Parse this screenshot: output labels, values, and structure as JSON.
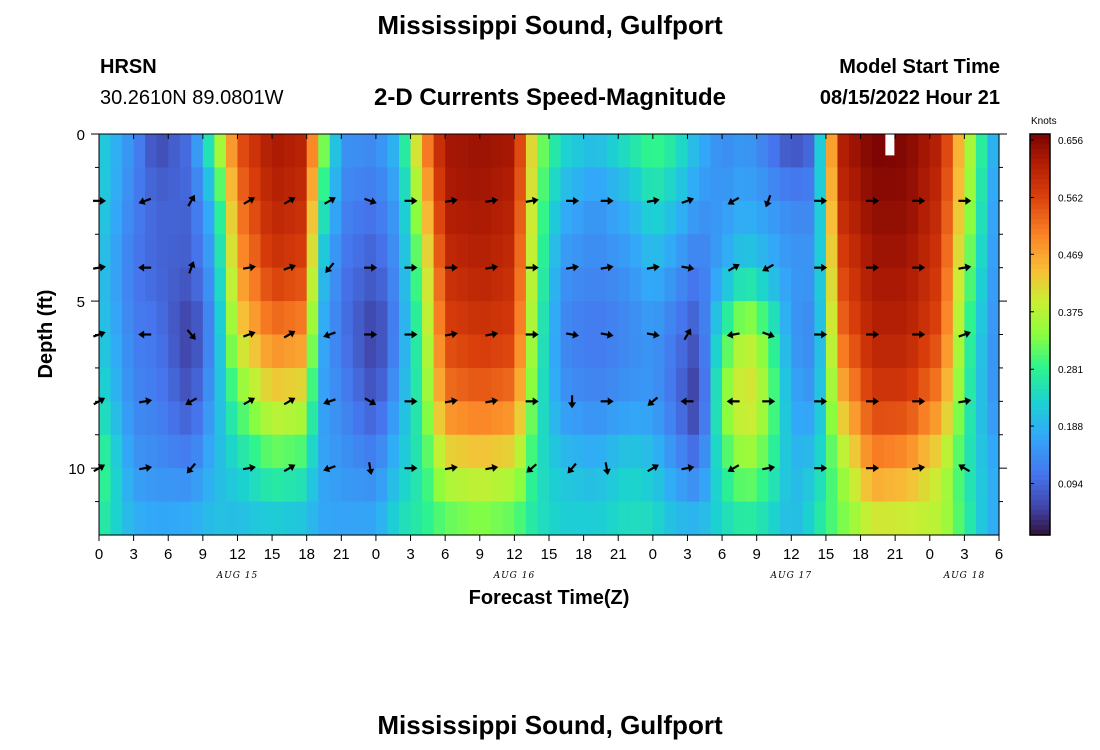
{
  "header": {
    "title": "Mississippi Sound, Gulfport",
    "station": "HRSN",
    "coords": "30.2610N  89.0801W",
    "model_label": "Model Start Time",
    "model_time": "08/15/2022 Hour 21",
    "footer_title": "Mississippi Sound, Gulfport"
  },
  "chart_data": {
    "type": "heatmap",
    "title": "2-D Currents Speed-Magnitude",
    "xlabel": "Forecast Time(Z)",
    "ylabel": "Depth (ft)",
    "xlim": [
      0,
      78
    ],
    "ylim": [
      0,
      12
    ],
    "x_ticks": [
      {
        "v": 0,
        "l": "0"
      },
      {
        "v": 3,
        "l": "3"
      },
      {
        "v": 6,
        "l": "6"
      },
      {
        "v": 9,
        "l": "9"
      },
      {
        "v": 12,
        "l": "12"
      },
      {
        "v": 15,
        "l": "15"
      },
      {
        "v": 18,
        "l": "18"
      },
      {
        "v": 21,
        "l": "21"
      },
      {
        "v": 24,
        "l": "0"
      },
      {
        "v": 27,
        "l": "3"
      },
      {
        "v": 30,
        "l": "6"
      },
      {
        "v": 33,
        "l": "9"
      },
      {
        "v": 36,
        "l": "12"
      },
      {
        "v": 39,
        "l": "15"
      },
      {
        "v": 42,
        "l": "18"
      },
      {
        "v": 45,
        "l": "21"
      },
      {
        "v": 48,
        "l": "0"
      },
      {
        "v": 51,
        "l": "3"
      },
      {
        "v": 54,
        "l": "6"
      },
      {
        "v": 57,
        "l": "9"
      },
      {
        "v": 60,
        "l": "12"
      },
      {
        "v": 63,
        "l": "15"
      },
      {
        "v": 66,
        "l": "18"
      },
      {
        "v": 69,
        "l": "21"
      },
      {
        "v": 72,
        "l": "0"
      },
      {
        "v": 75,
        "l": "3"
      },
      {
        "v": 78,
        "l": "6"
      }
    ],
    "y_ticks": [
      {
        "v": 0,
        "l": "0"
      },
      {
        "v": 5,
        "l": "5"
      },
      {
        "v": 10,
        "l": "10"
      }
    ],
    "day_labels": [
      {
        "v": 12,
        "l": "AUG 15"
      },
      {
        "v": 36,
        "l": "AUG 16"
      },
      {
        "v": 60,
        "l": "AUG 17"
      },
      {
        "v": 75,
        "l": "AUG 18"
      }
    ],
    "colorbar": {
      "unit": "Knots",
      "min": 0.0,
      "max": 0.656,
      "ticks": [
        0.656,
        0.562,
        0.469,
        0.375,
        0.281,
        0.188,
        0.094
      ]
    },
    "depth_levels": [
      0,
      2,
      4,
      6,
      8,
      10,
      12
    ],
    "speed_profiles": [
      {
        "hour": 0,
        "speeds": [
          0.22,
          0.22,
          0.2,
          0.21,
          0.24,
          0.3,
          0.26
        ]
      },
      {
        "hour": 3,
        "speeds": [
          0.13,
          0.11,
          0.1,
          0.11,
          0.12,
          0.14,
          0.18
        ]
      },
      {
        "hour": 5,
        "speeds": [
          0.04,
          0.08,
          0.08,
          0.1,
          0.11,
          0.13,
          0.17
        ]
      },
      {
        "hour": 8,
        "speeds": [
          0.1,
          0.08,
          0.07,
          0.03,
          0.06,
          0.12,
          0.18
        ]
      },
      {
        "hour": 10,
        "speeds": [
          0.32,
          0.2,
          0.16,
          0.14,
          0.16,
          0.18,
          0.2
        ]
      },
      {
        "hour": 12,
        "speeds": [
          0.54,
          0.5,
          0.46,
          0.4,
          0.3,
          0.22,
          0.18
        ]
      },
      {
        "hour": 15,
        "speeds": [
          0.62,
          0.6,
          0.57,
          0.5,
          0.4,
          0.28,
          0.19
        ]
      },
      {
        "hour": 18,
        "speeds": [
          0.6,
          0.58,
          0.55,
          0.48,
          0.38,
          0.26,
          0.18
        ]
      },
      {
        "hour": 19,
        "speeds": [
          0.4,
          0.3,
          0.22,
          0.18,
          0.16,
          0.16,
          0.16
        ]
      },
      {
        "hour": 21,
        "speeds": [
          0.14,
          0.12,
          0.1,
          0.1,
          0.12,
          0.14,
          0.16
        ]
      },
      {
        "hour": 24,
        "speeds": [
          0.13,
          0.1,
          0.07,
          0.03,
          0.06,
          0.12,
          0.17
        ]
      },
      {
        "hour": 26,
        "speeds": [
          0.2,
          0.16,
          0.14,
          0.13,
          0.16,
          0.2,
          0.24
        ]
      },
      {
        "hour": 28,
        "speeds": [
          0.48,
          0.4,
          0.34,
          0.3,
          0.28,
          0.26,
          0.26
        ]
      },
      {
        "hour": 30,
        "speeds": [
          0.62,
          0.61,
          0.58,
          0.55,
          0.5,
          0.38,
          0.28
        ]
      },
      {
        "hour": 33,
        "speeds": [
          0.63,
          0.62,
          0.6,
          0.57,
          0.52,
          0.4,
          0.3
        ]
      },
      {
        "hour": 36,
        "speeds": [
          0.62,
          0.6,
          0.58,
          0.56,
          0.5,
          0.38,
          0.28
        ]
      },
      {
        "hour": 38,
        "speeds": [
          0.34,
          0.32,
          0.3,
          0.28,
          0.26,
          0.24,
          0.24
        ]
      },
      {
        "hour": 40,
        "speeds": [
          0.24,
          0.18,
          0.14,
          0.12,
          0.14,
          0.2,
          0.22
        ]
      },
      {
        "hour": 43,
        "speeds": [
          0.2,
          0.14,
          0.12,
          0.1,
          0.12,
          0.18,
          0.22
        ]
      },
      {
        "hour": 46,
        "speeds": [
          0.26,
          0.18,
          0.14,
          0.12,
          0.14,
          0.22,
          0.24
        ]
      },
      {
        "hour": 48,
        "speeds": [
          0.3,
          0.24,
          0.18,
          0.14,
          0.14,
          0.2,
          0.24
        ]
      },
      {
        "hour": 50,
        "speeds": [
          0.26,
          0.2,
          0.14,
          0.1,
          0.09,
          0.14,
          0.2
        ]
      },
      {
        "hour": 52,
        "speeds": [
          0.18,
          0.14,
          0.1,
          0.06,
          0.02,
          0.1,
          0.2
        ]
      },
      {
        "hour": 54,
        "speeds": [
          0.12,
          0.14,
          0.16,
          0.26,
          0.32,
          0.26,
          0.22
        ]
      },
      {
        "hour": 56,
        "speeds": [
          0.14,
          0.16,
          0.22,
          0.38,
          0.42,
          0.34,
          0.24
        ]
      },
      {
        "hour": 58,
        "speeds": [
          0.1,
          0.14,
          0.18,
          0.3,
          0.34,
          0.28,
          0.22
        ]
      },
      {
        "hour": 60,
        "speeds": [
          0.04,
          0.12,
          0.14,
          0.14,
          0.16,
          0.18,
          0.18
        ]
      },
      {
        "hour": 62,
        "speeds": [
          0.08,
          0.12,
          0.14,
          0.12,
          0.14,
          0.2,
          0.24
        ]
      },
      {
        "hour": 63,
        "speeds": [
          0.34,
          0.3,
          0.28,
          0.26,
          0.26,
          0.26,
          0.28
        ]
      },
      {
        "hour": 64,
        "speeds": [
          0.6,
          0.58,
          0.54,
          0.5,
          0.42,
          0.32,
          0.3
        ]
      },
      {
        "hour": 67,
        "speeds": [
          0.66,
          0.64,
          0.62,
          0.6,
          0.56,
          0.48,
          0.36
        ]
      },
      {
        "hour": 70,
        "speeds": [
          0.65,
          0.64,
          0.62,
          0.6,
          0.56,
          0.46,
          0.36
        ]
      },
      {
        "hour": 73,
        "speeds": [
          0.6,
          0.58,
          0.56,
          0.54,
          0.48,
          0.38,
          0.36
        ]
      },
      {
        "hour": 75,
        "speeds": [
          0.4,
          0.38,
          0.34,
          0.3,
          0.28,
          0.26,
          0.28
        ]
      },
      {
        "hour": 77,
        "speeds": [
          0.22,
          0.2,
          0.18,
          0.16,
          0.16,
          0.18,
          0.18
        ]
      },
      {
        "hour": 78,
        "speeds": [
          0.14,
          0.12,
          0.12,
          0.12,
          0.12,
          0.16,
          0.16
        ]
      }
    ],
    "vectors": [
      {
        "t": 0,
        "d": 2,
        "dir": 90
      },
      {
        "t": 4,
        "d": 2,
        "dir": 250
      },
      {
        "t": 8,
        "d": 2,
        "dir": 30
      },
      {
        "t": 13,
        "d": 2,
        "dir": 60
      },
      {
        "t": 16.5,
        "d": 2,
        "dir": 60
      },
      {
        "t": 20,
        "d": 2,
        "dir": 60
      },
      {
        "t": 23.5,
        "d": 2,
        "dir": 110
      },
      {
        "t": 27,
        "d": 2,
        "dir": 90
      },
      {
        "t": 30.5,
        "d": 2,
        "dir": 80
      },
      {
        "t": 34,
        "d": 2,
        "dir": 80
      },
      {
        "t": 37.5,
        "d": 2,
        "dir": 80
      },
      {
        "t": 41,
        "d": 2,
        "dir": 90
      },
      {
        "t": 44,
        "d": 2,
        "dir": 90
      },
      {
        "t": 48,
        "d": 2,
        "dir": 80
      },
      {
        "t": 51,
        "d": 2,
        "dir": 70
      },
      {
        "t": 55,
        "d": 2,
        "dir": 240
      },
      {
        "t": 58,
        "d": 2,
        "dir": 200
      },
      {
        "t": 62.5,
        "d": 2,
        "dir": 90
      },
      {
        "t": 67,
        "d": 2,
        "dir": 90
      },
      {
        "t": 71,
        "d": 2,
        "dir": 90
      },
      {
        "t": 75,
        "d": 2,
        "dir": 90
      },
      {
        "t": 0,
        "d": 4,
        "dir": 80
      },
      {
        "t": 4,
        "d": 4,
        "dir": 270
      },
      {
        "t": 8,
        "d": 4,
        "dir": 20
      },
      {
        "t": 13,
        "d": 4,
        "dir": 80
      },
      {
        "t": 16.5,
        "d": 4,
        "dir": 70
      },
      {
        "t": 20,
        "d": 4,
        "dir": 220
      },
      {
        "t": 23.5,
        "d": 4,
        "dir": 90
      },
      {
        "t": 27,
        "d": 4,
        "dir": 90
      },
      {
        "t": 30.5,
        "d": 4,
        "dir": 90
      },
      {
        "t": 34,
        "d": 4,
        "dir": 80
      },
      {
        "t": 37.5,
        "d": 4,
        "dir": 90
      },
      {
        "t": 41,
        "d": 4,
        "dir": 80
      },
      {
        "t": 44,
        "d": 4,
        "dir": 80
      },
      {
        "t": 48,
        "d": 4,
        "dir": 80
      },
      {
        "t": 51,
        "d": 4,
        "dir": 100
      },
      {
        "t": 55,
        "d": 4,
        "dir": 60
      },
      {
        "t": 58,
        "d": 4,
        "dir": 240
      },
      {
        "t": 62.5,
        "d": 4,
        "dir": 90
      },
      {
        "t": 67,
        "d": 4,
        "dir": 90
      },
      {
        "t": 71,
        "d": 4,
        "dir": 90
      },
      {
        "t": 75,
        "d": 4,
        "dir": 80
      },
      {
        "t": 0,
        "d": 6,
        "dir": 70
      },
      {
        "t": 4,
        "d": 6,
        "dir": 270
      },
      {
        "t": 8,
        "d": 6,
        "dir": 140
      },
      {
        "t": 13,
        "d": 6,
        "dir": 70
      },
      {
        "t": 16.5,
        "d": 6,
        "dir": 60
      },
      {
        "t": 20,
        "d": 6,
        "dir": 250
      },
      {
        "t": 23.5,
        "d": 6,
        "dir": 90
      },
      {
        "t": 27,
        "d": 6,
        "dir": 90
      },
      {
        "t": 30.5,
        "d": 6,
        "dir": 80
      },
      {
        "t": 34,
        "d": 6,
        "dir": 80
      },
      {
        "t": 37.5,
        "d": 6,
        "dir": 90
      },
      {
        "t": 41,
        "d": 6,
        "dir": 100
      },
      {
        "t": 44,
        "d": 6,
        "dir": 100
      },
      {
        "t": 48,
        "d": 6,
        "dir": 100
      },
      {
        "t": 51,
        "d": 6,
        "dir": 30
      },
      {
        "t": 55,
        "d": 6,
        "dir": 260
      },
      {
        "t": 58,
        "d": 6,
        "dir": 110
      },
      {
        "t": 62.5,
        "d": 6,
        "dir": 90
      },
      {
        "t": 67,
        "d": 6,
        "dir": 90
      },
      {
        "t": 71,
        "d": 6,
        "dir": 90
      },
      {
        "t": 75,
        "d": 6,
        "dir": 70
      },
      {
        "t": 0,
        "d": 8,
        "dir": 60
      },
      {
        "t": 4,
        "d": 8,
        "dir": 80
      },
      {
        "t": 8,
        "d": 8,
        "dir": 240
      },
      {
        "t": 13,
        "d": 8,
        "dir": 60
      },
      {
        "t": 16.5,
        "d": 8,
        "dir": 60
      },
      {
        "t": 20,
        "d": 8,
        "dir": 250
      },
      {
        "t": 23.5,
        "d": 8,
        "dir": 120
      },
      {
        "t": 27,
        "d": 8,
        "dir": 90
      },
      {
        "t": 30.5,
        "d": 8,
        "dir": 80
      },
      {
        "t": 34,
        "d": 8,
        "dir": 80
      },
      {
        "t": 37.5,
        "d": 8,
        "dir": 90
      },
      {
        "t": 41,
        "d": 8,
        "dir": 180
      },
      {
        "t": 44,
        "d": 8,
        "dir": 90
      },
      {
        "t": 48,
        "d": 8,
        "dir": 230
      },
      {
        "t": 51,
        "d": 8,
        "dir": 270
      },
      {
        "t": 55,
        "d": 8,
        "dir": 270
      },
      {
        "t": 58,
        "d": 8,
        "dir": 90
      },
      {
        "t": 62.5,
        "d": 8,
        "dir": 90
      },
      {
        "t": 67,
        "d": 8,
        "dir": 90
      },
      {
        "t": 71,
        "d": 8,
        "dir": 90
      },
      {
        "t": 75,
        "d": 8,
        "dir": 80
      },
      {
        "t": 0,
        "d": 10,
        "dir": 60
      },
      {
        "t": 4,
        "d": 10,
        "dir": 80
      },
      {
        "t": 8,
        "d": 10,
        "dir": 220
      },
      {
        "t": 13,
        "d": 10,
        "dir": 80
      },
      {
        "t": 16.5,
        "d": 10,
        "dir": 60
      },
      {
        "t": 20,
        "d": 10,
        "dir": 250
      },
      {
        "t": 23.5,
        "d": 10,
        "dir": 170
      },
      {
        "t": 27,
        "d": 10,
        "dir": 90
      },
      {
        "t": 30.5,
        "d": 10,
        "dir": 80
      },
      {
        "t": 34,
        "d": 10,
        "dir": 80
      },
      {
        "t": 37.5,
        "d": 10,
        "dir": 230
      },
      {
        "t": 41,
        "d": 10,
        "dir": 220
      },
      {
        "t": 44,
        "d": 10,
        "dir": 170
      },
      {
        "t": 48,
        "d": 10,
        "dir": 60
      },
      {
        "t": 51,
        "d": 10,
        "dir": 80
      },
      {
        "t": 55,
        "d": 10,
        "dir": 240
      },
      {
        "t": 58,
        "d": 10,
        "dir": 80
      },
      {
        "t": 62.5,
        "d": 10,
        "dir": 90
      },
      {
        "t": 67,
        "d": 10,
        "dir": 90
      },
      {
        "t": 71,
        "d": 10,
        "dir": 80
      },
      {
        "t": 75,
        "d": 10,
        "dir": 300
      }
    ],
    "blank_cell": {
      "t": 68.5,
      "d": 0.4
    }
  }
}
